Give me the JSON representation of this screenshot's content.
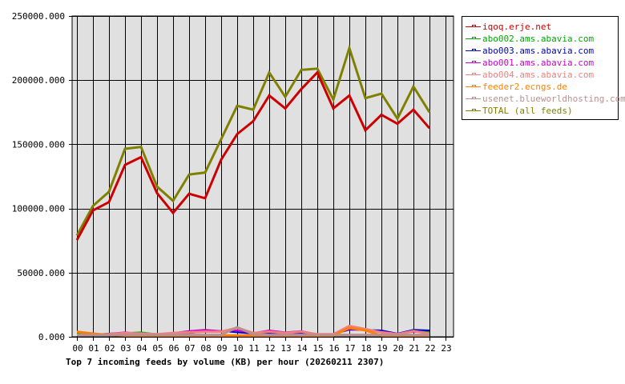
{
  "chart_data": {
    "type": "line",
    "title": "Top 7 incoming feeds by volume (KB) per hour (20260211 2307)",
    "xlabel": "",
    "ylabel": "",
    "ylim": [
      0,
      250000
    ],
    "grid": true,
    "legend_position": "right",
    "y_ticks": [
      "0.000",
      "50000.000",
      "100000.000",
      "150000.000",
      "200000.000",
      "250000.000"
    ],
    "y_tick_values": [
      0,
      50000,
      100000,
      150000,
      200000,
      250000
    ],
    "categories": [
      "00",
      "01",
      "02",
      "03",
      "04",
      "05",
      "06",
      "07",
      "08",
      "09",
      "10",
      "11",
      "12",
      "13",
      "14",
      "15",
      "16",
      "17",
      "18",
      "19",
      "20",
      "21",
      "22",
      "23"
    ],
    "series": [
      {
        "name": "iqoq.erje.net",
        "color": "#cc0000",
        "width": 3,
        "values": [
          75400,
          98500,
          105000,
          134000,
          140000,
          112000,
          96600,
          111500,
          108000,
          138000,
          158000,
          168000,
          188000,
          178000,
          193000,
          206000,
          178000,
          188000,
          161000,
          173000,
          166000,
          177000,
          162500
        ]
      },
      {
        "name": "abo002.ams.abavia.com",
        "color": "#00aa00",
        "width": 2,
        "values": [
          2500,
          1800,
          2500,
          3000,
          3500,
          2000,
          2500,
          4000,
          4500,
          4000,
          5000,
          3000,
          3500,
          3000,
          3500,
          1500,
          1500,
          6500,
          5500,
          4000,
          2000,
          4000,
          4000
        ]
      },
      {
        "name": "abo003.ams.abavia.com",
        "color": "#0000cc",
        "width": 2,
        "values": [
          1500,
          1500,
          2000,
          2500,
          2000,
          1500,
          2000,
          3000,
          4000,
          4500,
          3500,
          2500,
          3000,
          2500,
          3000,
          2000,
          2000,
          5500,
          5500,
          5000,
          2500,
          5500,
          5000
        ]
      },
      {
        "name": "abo001.ams.abavia.com",
        "color": "#cc00cc",
        "width": 2,
        "values": [
          1500,
          1500,
          2500,
          3500,
          2500,
          2000,
          3000,
          4500,
          5500,
          4500,
          5000,
          3000,
          5000,
          3500,
          4500,
          2000,
          2000,
          6000,
          5000,
          4000,
          2500,
          4000,
          3000
        ]
      },
      {
        "name": "abo004.ams.abavia.com",
        "color": "#f08080",
        "width": 3,
        "values": [
          1500,
          1500,
          2000,
          3000,
          2500,
          2000,
          3000,
          3500,
          4000,
          4000,
          7000,
          3000,
          4000,
          3000,
          4000,
          2000,
          2000,
          8500,
          6000,
          3500,
          2000,
          4500,
          2500
        ]
      },
      {
        "name": "feeder2.ecngs.de",
        "color": "#ff8000",
        "width": 3,
        "values": [
          4000,
          2500,
          1500,
          1000,
          1000,
          1000,
          1000,
          1000,
          1000,
          1000,
          1000,
          1000,
          1000,
          1000,
          1000,
          1000,
          1000,
          7000,
          5000,
          1000,
          1000,
          1000,
          1000
        ]
      },
      {
        "name": "usenet.blueworldhosting.com",
        "color": "#bc8f8f",
        "width": 3,
        "values": [
          1500,
          1500,
          1500,
          1500,
          1500,
          1500,
          1500,
          1500,
          1500,
          1500,
          7500,
          2000,
          1500,
          1500,
          1500,
          1500,
          1500,
          1500,
          1500,
          1500,
          1500,
          1500,
          1500
        ]
      },
      {
        "name": "TOTAL (all feeds)",
        "color": "#808000",
        "width": 3,
        "values": [
          79000,
          102000,
          113000,
          146500,
          148000,
          117000,
          106000,
          126500,
          128000,
          154000,
          180000,
          177000,
          206000,
          187000,
          208000,
          209000,
          185000,
          225000,
          186000,
          189500,
          170000,
          195000,
          175000
        ]
      }
    ]
  },
  "legend": {
    "items": [
      {
        "label": "iqoq.erje.net",
        "color": "#cc0000"
      },
      {
        "label": "abo002.ams.abavia.com",
        "color": "#00aa00"
      },
      {
        "label": "abo003.ams.abavia.com",
        "color": "#0000cc"
      },
      {
        "label": "abo001.ams.abavia.com",
        "color": "#cc00cc"
      },
      {
        "label": "abo004.ams.abavia.com",
        "color": "#f08080"
      },
      {
        "label": "feeder2.ecngs.de",
        "color": "#ff8000"
      },
      {
        "label": "usenet.blueworldhosting.com",
        "color": "#bc8f8f"
      },
      {
        "label": "TOTAL (all feeds)",
        "color": "#808000"
      }
    ]
  },
  "colors": {
    "plot_background": "#e0e0e0",
    "grid": "#000000"
  }
}
